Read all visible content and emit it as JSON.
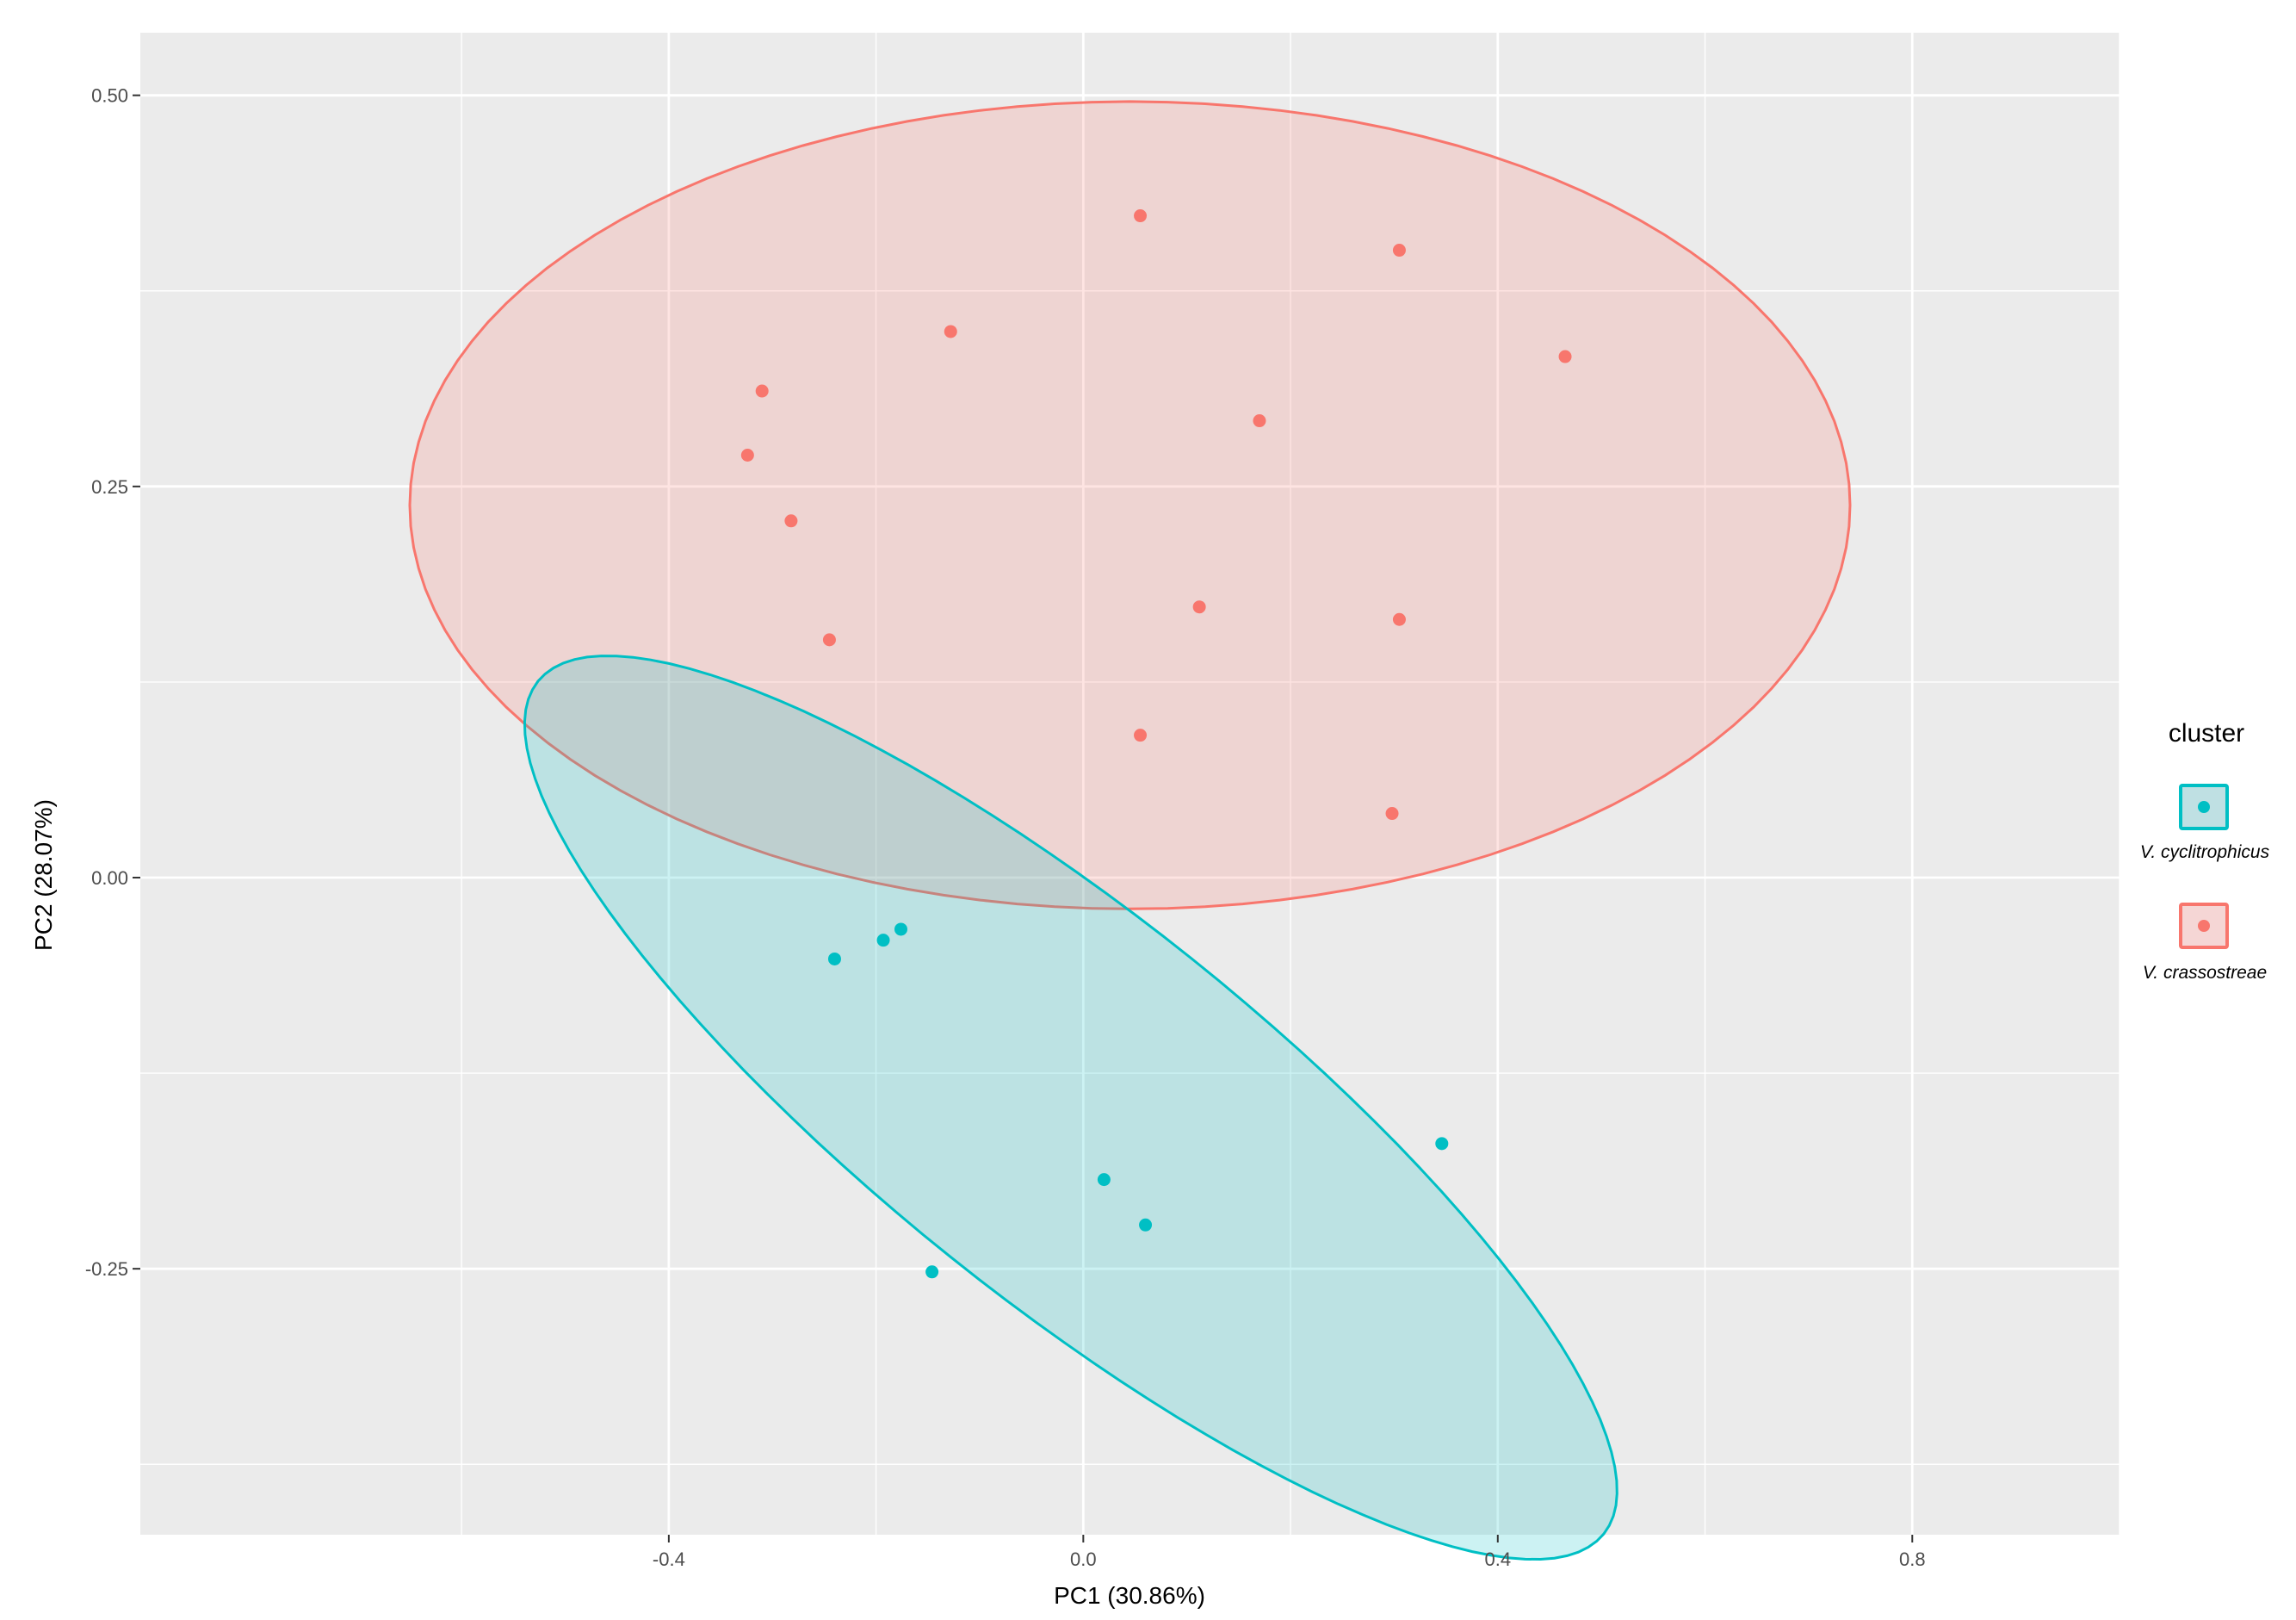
{
  "chart_data": {
    "type": "scatter",
    "title": "",
    "xlabel": "PC1 (30.86%)",
    "ylabel": "PC2 (28.07%)",
    "xlim": [
      -0.91,
      1.0
    ],
    "ylim": [
      -0.42,
      0.54
    ],
    "x_ticks": [
      -0.4,
      0.0,
      0.4,
      0.8
    ],
    "x_tick_labels": [
      "-0.4",
      "0.0",
      "0.4",
      "0.8"
    ],
    "y_ticks": [
      -0.25,
      0.0,
      0.25,
      0.5
    ],
    "y_tick_labels": [
      "-0.25",
      "0.00",
      "0.25",
      "0.50"
    ],
    "grid": true,
    "legend": {
      "title": "cluster",
      "position": "right"
    },
    "series": [
      {
        "name": "V. cyclitrophicus",
        "color": "#00BFC4",
        "fill": "#bfe0e3",
        "points": [
          {
            "x": -0.24,
            "y": -0.052
          },
          {
            "x": -0.193,
            "y": -0.04
          },
          {
            "x": -0.176,
            "y": -0.033
          },
          {
            "x": -0.146,
            "y": -0.252
          },
          {
            "x": 0.02,
            "y": -0.193
          },
          {
            "x": 0.06,
            "y": -0.222
          },
          {
            "x": 0.346,
            "y": -0.17
          }
        ],
        "ellipse": {
          "cx": -0.012,
          "cy": -0.147,
          "rx": 0.585,
          "ry": 0.138,
          "angle_deg": -26.5
        }
      },
      {
        "name": "V. crassostreae",
        "color": "#F8766D",
        "fill": "#f5d6d5",
        "points": [
          {
            "x": 0.055,
            "y": 0.423
          },
          {
            "x": 0.305,
            "y": 0.401
          },
          {
            "x": -0.128,
            "y": 0.349
          },
          {
            "x": 0.465,
            "y": 0.333
          },
          {
            "x": -0.31,
            "y": 0.311
          },
          {
            "x": 0.17,
            "y": 0.292
          },
          {
            "x": -0.324,
            "y": 0.27
          },
          {
            "x": -0.282,
            "y": 0.228
          },
          {
            "x": 0.112,
            "y": 0.173
          },
          {
            "x": 0.305,
            "y": 0.165
          },
          {
            "x": -0.245,
            "y": 0.152
          },
          {
            "x": 0.055,
            "y": 0.091
          },
          {
            "x": 0.298,
            "y": 0.041
          }
        ],
        "ellipse": {
          "cx": 0.045,
          "cy": 0.238,
          "rx": 0.695,
          "ry": 0.258,
          "angle_deg": 0
        }
      }
    ]
  }
}
